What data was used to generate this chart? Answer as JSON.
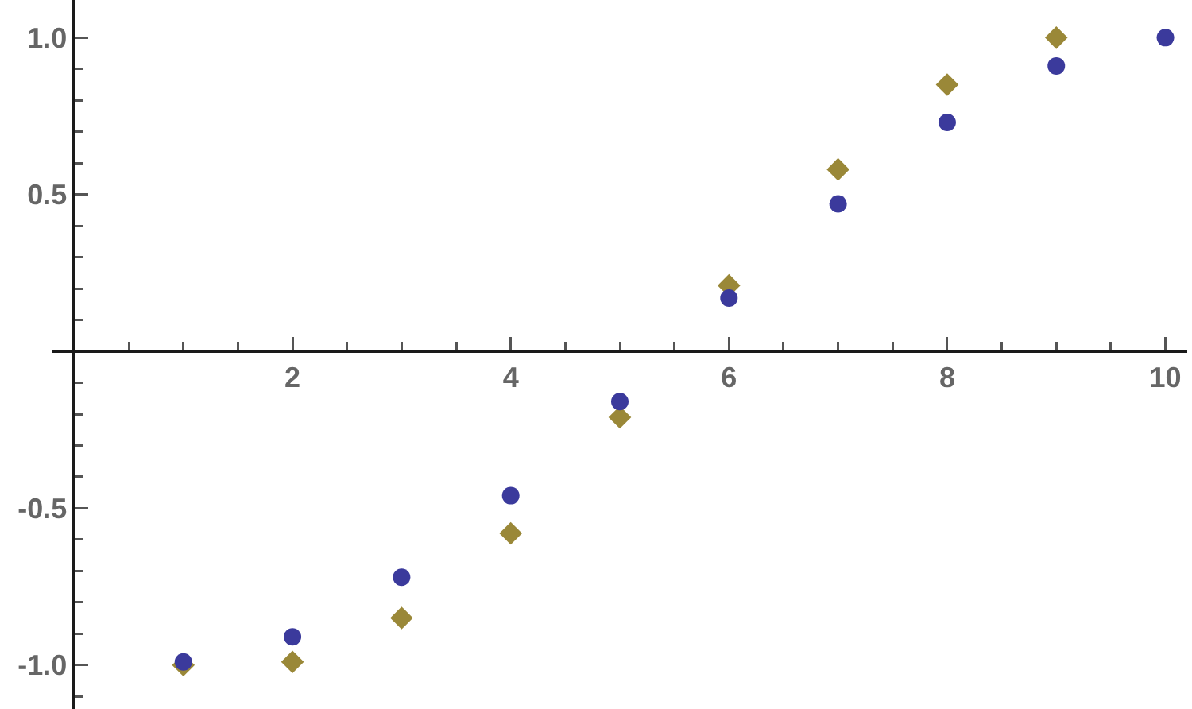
{
  "chart_data": {
    "type": "scatter",
    "x": [
      1,
      2,
      3,
      4,
      5,
      6,
      7,
      8,
      9,
      10
    ],
    "series": [
      {
        "color": "#9a8838",
        "marker": "diamond",
        "values": [
          -1.0,
          -0.99,
          -0.85,
          -0.58,
          -0.21,
          0.21,
          0.58,
          0.85,
          1.0,
          null
        ]
      },
      {
        "color": "#3b3a9c",
        "marker": "circle",
        "values": [
          -0.99,
          -0.91,
          -0.72,
          -0.46,
          -0.16,
          0.17,
          0.47,
          0.73,
          0.91,
          1.0
        ]
      }
    ],
    "xlim": [
      -0.2,
      10.2
    ],
    "ylim": [
      -1.14,
      1.12
    ],
    "xticks": [
      {
        "value": 0.5,
        "label": null
      },
      {
        "value": 1,
        "label": null
      },
      {
        "value": 1.5,
        "label": null
      },
      2,
      {
        "value": 2.5,
        "label": null
      },
      {
        "value": 3,
        "label": null
      },
      {
        "value": 3.5,
        "label": null
      },
      4,
      {
        "value": 4.5,
        "label": null
      },
      {
        "value": 5,
        "label": null
      },
      {
        "value": 5.5,
        "label": null
      },
      6,
      {
        "value": 6.5,
        "label": null
      },
      {
        "value": 7,
        "label": null
      },
      {
        "value": 7.5,
        "label": null
      },
      8,
      {
        "value": 8.5,
        "label": null
      },
      {
        "value": 9,
        "label": null
      },
      {
        "value": 9.5,
        "label": null
      },
      10
    ],
    "yticks": [
      {
        "value": -1.1,
        "label": null
      },
      {
        "value": -1,
        "label": "-1.0"
      },
      {
        "value": -0.9,
        "label": null
      },
      {
        "value": -0.8,
        "label": null
      },
      {
        "value": -0.7,
        "label": null
      },
      {
        "value": -0.6,
        "label": null
      },
      -0.5,
      {
        "value": -0.4,
        "label": null
      },
      {
        "value": -0.3,
        "label": null
      },
      {
        "value": -0.2,
        "label": null
      },
      {
        "value": -0.1,
        "label": null
      },
      {
        "value": 0.1,
        "label": null
      },
      {
        "value": 0.2,
        "label": null
      },
      {
        "value": 0.3,
        "label": null
      },
      {
        "value": 0.4,
        "label": null
      },
      0.5,
      {
        "value": 0.6,
        "label": null
      },
      {
        "value": 0.7,
        "label": null
      },
      {
        "value": 0.8,
        "label": null
      },
      {
        "value": 0.9,
        "label": null
      },
      {
        "value": 1,
        "label": "1.0"
      }
    ]
  }
}
